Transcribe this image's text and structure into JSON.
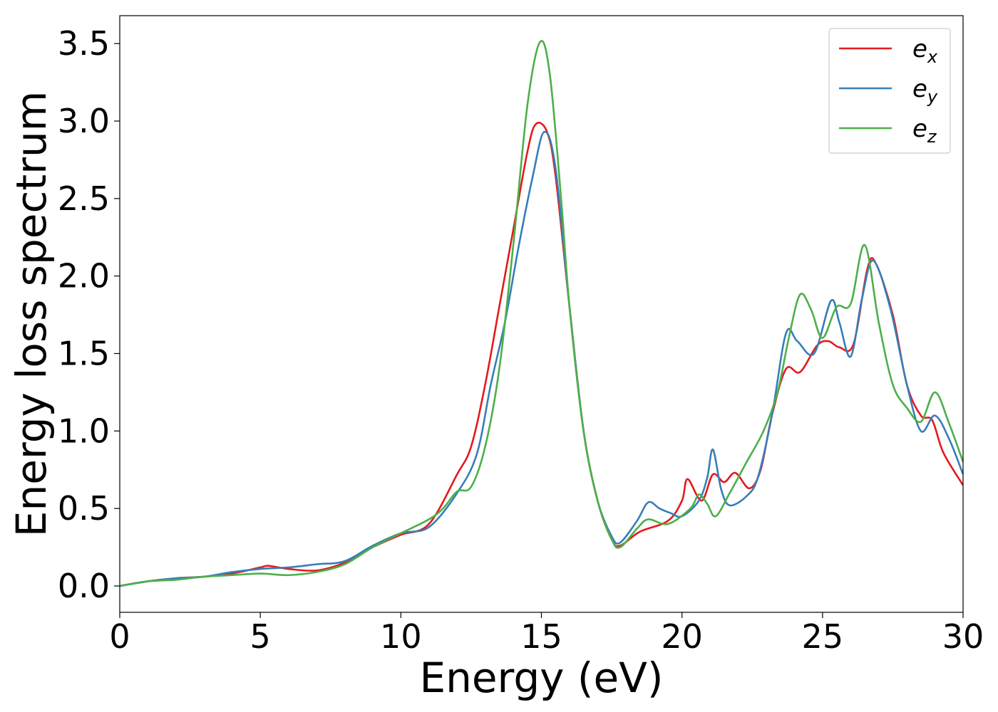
{
  "chart_data": {
    "type": "line",
    "xlabel": "Energy (eV)",
    "ylabel": "Energy loss spectrum",
    "xlim": [
      0,
      30
    ],
    "ylim": [
      -0.17,
      3.68
    ],
    "xticks": [
      {
        "value": 0,
        "label": "0"
      },
      {
        "value": 5,
        "label": "5"
      },
      {
        "value": 10,
        "label": "10"
      },
      {
        "value": 15,
        "label": "15"
      },
      {
        "value": 20,
        "label": "20"
      },
      {
        "value": 25,
        "label": "25"
      },
      {
        "value": 30,
        "label": "30"
      }
    ],
    "yticks": [
      {
        "value": 0.0,
        "label": "0.0"
      },
      {
        "value": 0.5,
        "label": "0.5"
      },
      {
        "value": 1.0,
        "label": "1.0"
      },
      {
        "value": 1.5,
        "label": "1.5"
      },
      {
        "value": 2.0,
        "label": "2.0"
      },
      {
        "value": 2.5,
        "label": "2.5"
      },
      {
        "value": 3.0,
        "label": "3.0"
      },
      {
        "value": 3.5,
        "label": "3.5"
      }
    ],
    "grid": false,
    "legend_position": "top-right",
    "series": [
      {
        "name": "e_x",
        "label_base": "e",
        "label_sub": "x",
        "color": "#e41a1c",
        "points": [
          [
            0,
            0.0
          ],
          [
            1,
            0.03
          ],
          [
            2,
            0.05
          ],
          [
            3,
            0.06
          ],
          [
            4,
            0.08
          ],
          [
            5,
            0.12
          ],
          [
            5.3,
            0.13
          ],
          [
            6,
            0.11
          ],
          [
            7,
            0.1
          ],
          [
            8,
            0.15
          ],
          [
            9,
            0.25
          ],
          [
            10,
            0.33
          ],
          [
            11,
            0.4
          ],
          [
            12,
            0.72
          ],
          [
            12.5,
            0.9
          ],
          [
            13,
            1.3
          ],
          [
            13.5,
            1.8
          ],
          [
            14,
            2.3
          ],
          [
            14.5,
            2.8
          ],
          [
            14.8,
            2.98
          ],
          [
            15.2,
            2.93
          ],
          [
            15.5,
            2.65
          ],
          [
            16,
            1.8
          ],
          [
            16.5,
            1.0
          ],
          [
            17,
            0.55
          ],
          [
            17.5,
            0.3
          ],
          [
            17.8,
            0.26
          ],
          [
            18.5,
            0.35
          ],
          [
            19.5,
            0.42
          ],
          [
            20,
            0.55
          ],
          [
            20.2,
            0.69
          ],
          [
            20.7,
            0.55
          ],
          [
            21.1,
            0.72
          ],
          [
            21.5,
            0.67
          ],
          [
            21.9,
            0.73
          ],
          [
            22.4,
            0.63
          ],
          [
            22.8,
            0.75
          ],
          [
            23.2,
            1.1
          ],
          [
            23.7,
            1.4
          ],
          [
            24.2,
            1.38
          ],
          [
            24.8,
            1.55
          ],
          [
            25.2,
            1.58
          ],
          [
            25.6,
            1.54
          ],
          [
            26.1,
            1.56
          ],
          [
            26.6,
            2.05
          ],
          [
            26.9,
            2.08
          ],
          [
            27.5,
            1.75
          ],
          [
            28,
            1.3
          ],
          [
            28.5,
            1.1
          ],
          [
            28.9,
            1.07
          ],
          [
            29.3,
            0.86
          ],
          [
            30,
            0.65
          ]
        ]
      },
      {
        "name": "e_y",
        "label_base": "e",
        "label_sub": "y",
        "color": "#377eb8",
        "points": [
          [
            0,
            0.0
          ],
          [
            1,
            0.03
          ],
          [
            2,
            0.05
          ],
          [
            3,
            0.06
          ],
          [
            4,
            0.09
          ],
          [
            5,
            0.11
          ],
          [
            6,
            0.12
          ],
          [
            7,
            0.14
          ],
          [
            8,
            0.16
          ],
          [
            9,
            0.26
          ],
          [
            10,
            0.34
          ],
          [
            11,
            0.38
          ],
          [
            12,
            0.6
          ],
          [
            12.7,
            0.85
          ],
          [
            13.2,
            1.3
          ],
          [
            13.7,
            1.7
          ],
          [
            14.2,
            2.2
          ],
          [
            14.7,
            2.65
          ],
          [
            15.1,
            2.93
          ],
          [
            15.5,
            2.7
          ],
          [
            16,
            1.8
          ],
          [
            16.5,
            1.0
          ],
          [
            17,
            0.55
          ],
          [
            17.5,
            0.32
          ],
          [
            17.8,
            0.28
          ],
          [
            18.4,
            0.42
          ],
          [
            18.8,
            0.54
          ],
          [
            19.2,
            0.5
          ],
          [
            19.6,
            0.47
          ],
          [
            20,
            0.45
          ],
          [
            20.6,
            0.55
          ],
          [
            20.9,
            0.7
          ],
          [
            21.1,
            0.88
          ],
          [
            21.4,
            0.62
          ],
          [
            21.7,
            0.52
          ],
          [
            22.3,
            0.58
          ],
          [
            22.7,
            0.7
          ],
          [
            23.2,
            1.1
          ],
          [
            23.7,
            1.63
          ],
          [
            24.1,
            1.58
          ],
          [
            24.7,
            1.5
          ],
          [
            25.3,
            1.84
          ],
          [
            25.6,
            1.7
          ],
          [
            26.0,
            1.48
          ],
          [
            26.4,
            1.85
          ],
          [
            26.8,
            2.1
          ],
          [
            27.4,
            1.8
          ],
          [
            28,
            1.3
          ],
          [
            28.5,
            1.0
          ],
          [
            29,
            1.1
          ],
          [
            29.5,
            0.95
          ],
          [
            30,
            0.72
          ]
        ]
      },
      {
        "name": "e_z",
        "label_base": "e",
        "label_sub": "z",
        "color": "#4daf4a",
        "points": [
          [
            0,
            0.0
          ],
          [
            1,
            0.03
          ],
          [
            2,
            0.04
          ],
          [
            3,
            0.06
          ],
          [
            4,
            0.07
          ],
          [
            5,
            0.08
          ],
          [
            6,
            0.07
          ],
          [
            7,
            0.09
          ],
          [
            8,
            0.14
          ],
          [
            9,
            0.25
          ],
          [
            10,
            0.34
          ],
          [
            11,
            0.43
          ],
          [
            11.5,
            0.5
          ],
          [
            12,
            0.61
          ],
          [
            12.5,
            0.64
          ],
          [
            13,
            0.9
          ],
          [
            13.5,
            1.4
          ],
          [
            14,
            2.2
          ],
          [
            14.5,
            3.1
          ],
          [
            14.95,
            3.51
          ],
          [
            15.3,
            3.3
          ],
          [
            15.7,
            2.5
          ],
          [
            16,
            1.8
          ],
          [
            16.5,
            1.0
          ],
          [
            17,
            0.55
          ],
          [
            17.5,
            0.3
          ],
          [
            17.8,
            0.25
          ],
          [
            18.4,
            0.37
          ],
          [
            18.8,
            0.43
          ],
          [
            19.5,
            0.4
          ],
          [
            20.3,
            0.5
          ],
          [
            20.6,
            0.59
          ],
          [
            20.9,
            0.53
          ],
          [
            21.2,
            0.45
          ],
          [
            21.7,
            0.6
          ],
          [
            22.3,
            0.8
          ],
          [
            22.9,
            1.0
          ],
          [
            23.4,
            1.25
          ],
          [
            23.8,
            1.6
          ],
          [
            24.2,
            1.88
          ],
          [
            24.6,
            1.78
          ],
          [
            25.0,
            1.6
          ],
          [
            25.5,
            1.8
          ],
          [
            26.0,
            1.82
          ],
          [
            26.5,
            2.2
          ],
          [
            27.0,
            1.7
          ],
          [
            27.5,
            1.3
          ],
          [
            28,
            1.15
          ],
          [
            28.5,
            1.06
          ],
          [
            29.0,
            1.25
          ],
          [
            29.5,
            1.05
          ],
          [
            30,
            0.8
          ]
        ]
      }
    ]
  }
}
